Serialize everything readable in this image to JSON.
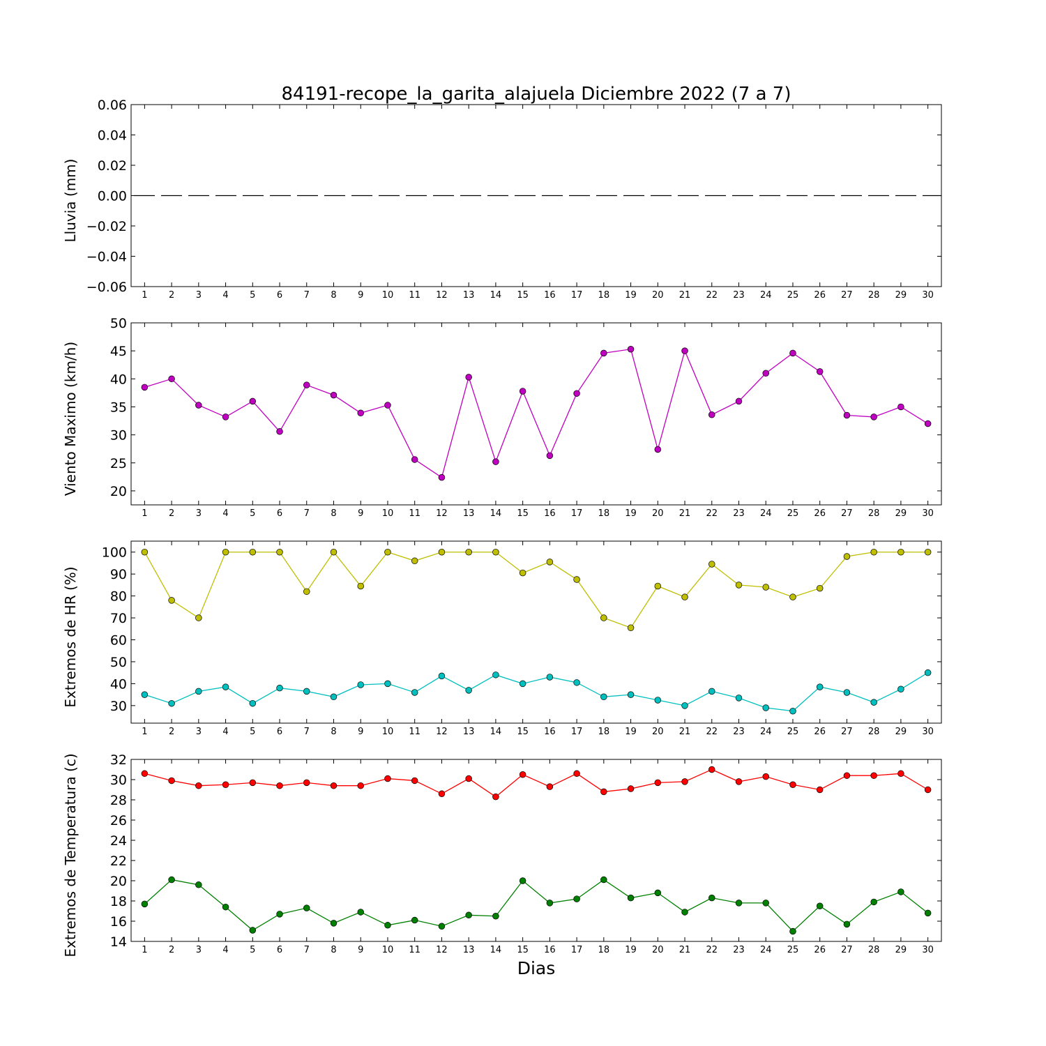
{
  "figure": {
    "title": "84191-recope_la_garita_alajuela Diciembre 2022  (7 a 7)",
    "xlabel": "Dias"
  },
  "chart_data": [
    {
      "type": "line",
      "ylabel": "Lluvia (mm)",
      "x": [
        1,
        2,
        3,
        4,
        5,
        6,
        7,
        8,
        9,
        10,
        11,
        12,
        13,
        14,
        15,
        16,
        17,
        18,
        19,
        20,
        21,
        22,
        23,
        24,
        25,
        26,
        27,
        28,
        29,
        30
      ],
      "xlim": [
        0.5,
        30.5
      ],
      "ylim": [
        -0.06,
        0.06
      ],
      "yticks": [
        -0.06,
        -0.04,
        -0.02,
        0.0,
        0.02,
        0.04,
        0.06
      ],
      "ytick_labels": [
        "−0.06",
        "−0.04",
        "−0.02",
        "0.00",
        "0.02",
        "0.04",
        "0.06"
      ],
      "series": [
        {
          "color": "#000000",
          "style": "dashed",
          "markers": false,
          "values": [
            0,
            0,
            0,
            0,
            0,
            0,
            0,
            0,
            0,
            0,
            0,
            0,
            0,
            0,
            0,
            0,
            0,
            0,
            0,
            0,
            0,
            0,
            0,
            0,
            0,
            0,
            0,
            0,
            0,
            0
          ]
        }
      ]
    },
    {
      "type": "line",
      "ylabel": "Viento Maximo (km/h)",
      "x": [
        1,
        2,
        3,
        4,
        5,
        6,
        7,
        8,
        9,
        10,
        11,
        12,
        13,
        14,
        15,
        16,
        17,
        18,
        19,
        20,
        21,
        22,
        23,
        24,
        25,
        26,
        27,
        28,
        29,
        30
      ],
      "xlim": [
        0.5,
        30.5
      ],
      "ylim": [
        17.5,
        50
      ],
      "yticks": [
        20,
        25,
        30,
        35,
        40,
        45,
        50
      ],
      "ytick_labels": [
        "20",
        "25",
        "30",
        "35",
        "40",
        "45",
        "50"
      ],
      "series": [
        {
          "color": "#c000c0",
          "style": "solid",
          "markers": true,
          "values": [
            38.5,
            40.0,
            35.3,
            33.2,
            36.0,
            30.6,
            38.9,
            37.1,
            33.9,
            35.3,
            25.6,
            22.4,
            40.3,
            25.2,
            37.8,
            26.3,
            37.4,
            44.6,
            45.3,
            27.4,
            45.0,
            33.6,
            36.0,
            41.0,
            44.6,
            41.3,
            33.5,
            33.2,
            35.0,
            32.0
          ]
        }
      ]
    },
    {
      "type": "line",
      "ylabel": "Extremos de HR (%)",
      "x": [
        1,
        2,
        3,
        4,
        5,
        6,
        7,
        8,
        9,
        10,
        11,
        12,
        13,
        14,
        15,
        16,
        17,
        18,
        19,
        20,
        21,
        22,
        23,
        24,
        25,
        26,
        27,
        28,
        29,
        30
      ],
      "xlim": [
        0.5,
        30.5
      ],
      "ylim": [
        22,
        105
      ],
      "yticks": [
        30,
        40,
        50,
        60,
        70,
        80,
        90,
        100
      ],
      "ytick_labels": [
        "30",
        "40",
        "50",
        "60",
        "70",
        "80",
        "90",
        "100"
      ],
      "series": [
        {
          "color": "#bfbf00",
          "style": "solid",
          "markers": true,
          "values": [
            100,
            78,
            70,
            100,
            100,
            100,
            82,
            100,
            84.5,
            100,
            96,
            100,
            100,
            100,
            90.5,
            95.5,
            87.5,
            70,
            65.5,
            84.5,
            79.5,
            94.5,
            85,
            84,
            79.5,
            83.5,
            98,
            100,
            100,
            100
          ]
        },
        {
          "color": "#00bfbf",
          "style": "solid",
          "markers": true,
          "values": [
            35,
            31,
            36.5,
            38.5,
            31,
            38,
            36.5,
            34,
            39.5,
            40,
            36,
            43.5,
            37,
            44,
            40,
            43,
            40.5,
            34,
            35,
            32.5,
            30,
            36.5,
            33.5,
            29,
            27.5,
            38.5,
            36,
            31.5,
            37.5,
            45
          ]
        }
      ]
    },
    {
      "type": "line",
      "ylabel": "Extremos de Temperatura (c)",
      "x": [
        1,
        2,
        3,
        4,
        5,
        6,
        7,
        8,
        9,
        10,
        11,
        12,
        13,
        14,
        15,
        16,
        17,
        18,
        19,
        20,
        21,
        22,
        23,
        24,
        25,
        26,
        27,
        28,
        29,
        30
      ],
      "xlim": [
        0.5,
        30.5
      ],
      "ylim": [
        14,
        32
      ],
      "yticks": [
        14,
        16,
        18,
        20,
        22,
        24,
        26,
        28,
        30,
        32
      ],
      "ytick_labels": [
        "14",
        "16",
        "18",
        "20",
        "22",
        "24",
        "26",
        "28",
        "30",
        "32"
      ],
      "series": [
        {
          "color": "#ff0000",
          "style": "solid",
          "markers": true,
          "values": [
            30.6,
            29.9,
            29.4,
            29.5,
            29.7,
            29.4,
            29.7,
            29.4,
            29.4,
            30.1,
            29.9,
            28.6,
            30.1,
            28.3,
            30.5,
            29.3,
            30.6,
            28.8,
            29.1,
            29.7,
            29.8,
            31.0,
            29.8,
            30.3,
            29.5,
            29.0,
            30.4,
            30.4,
            30.6,
            29.0
          ]
        },
        {
          "color": "#008000",
          "style": "solid",
          "markers": true,
          "values": [
            17.7,
            20.1,
            19.6,
            17.4,
            15.1,
            16.7,
            17.3,
            15.8,
            16.9,
            15.6,
            16.1,
            15.5,
            16.6,
            16.5,
            20.0,
            17.8,
            18.2,
            20.1,
            18.3,
            18.8,
            16.9,
            18.3,
            17.8,
            17.8,
            15.0,
            17.5,
            15.7,
            17.9,
            18.9,
            16.8
          ]
        }
      ]
    }
  ]
}
